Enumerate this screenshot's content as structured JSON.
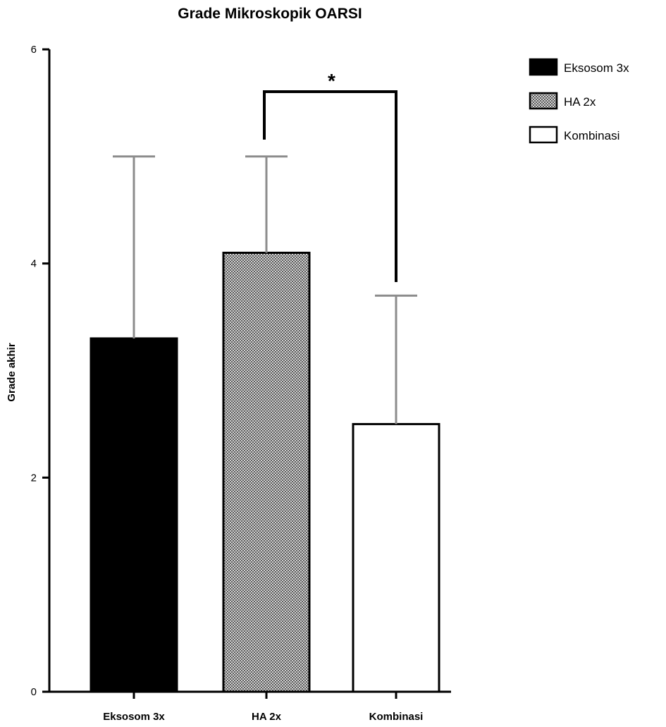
{
  "chart_data": {
    "type": "bar",
    "title": "Grade Mikroskopik OARSI",
    "xlabel": "",
    "ylabel": "Grade akhir",
    "ylim": [
      0,
      6
    ],
    "yticks": [
      "0",
      "2",
      "4",
      "6"
    ],
    "categories": [
      "Eksosom 3x",
      "HA 2x",
      "Kombinasi"
    ],
    "values": [
      3.3,
      4.1,
      2.5
    ],
    "error": [
      1.7,
      0.9,
      1.2
    ],
    "fills": [
      "solid-black",
      "checkered-gray",
      "white"
    ],
    "colors": {
      "bar_fill_1": "#000000",
      "bar_fill_3": "#ffffff",
      "pattern_light": "#d4d4d4",
      "pattern_dark": "#5a5a5a",
      "error_bar": "#8c8c8c",
      "axis": "#000000"
    },
    "legend": {
      "position": "top-right",
      "entries": [
        "Eksosom 3x",
        "HA 2x",
        "Kombinasi"
      ]
    },
    "significance": {
      "between": [
        "HA 2x",
        "Kombinasi"
      ],
      "label": "*"
    },
    "grid": false
  }
}
